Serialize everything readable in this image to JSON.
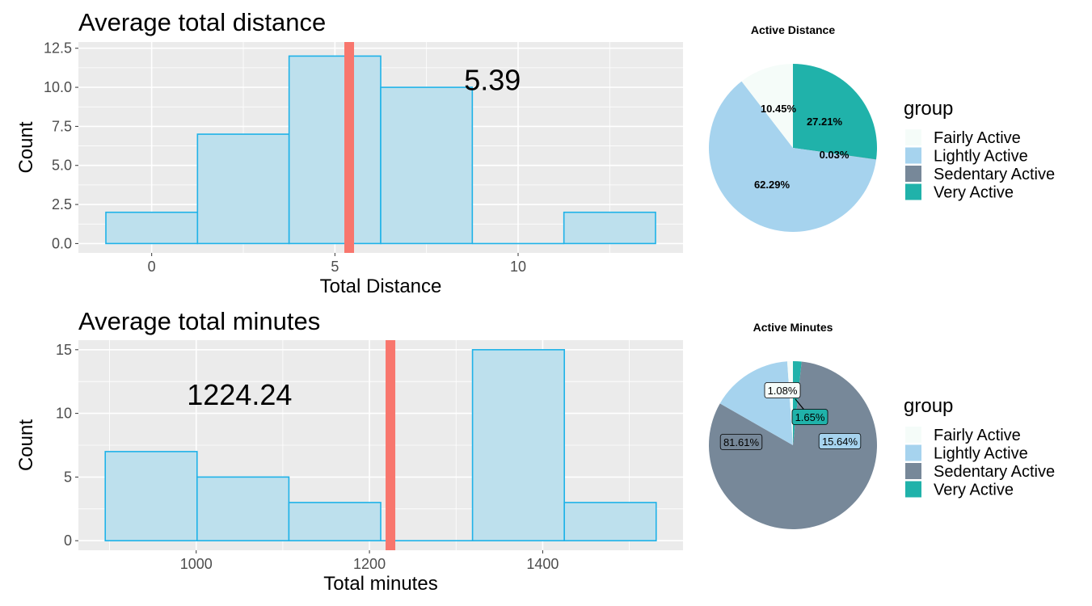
{
  "chart_data": [
    {
      "type": "bar",
      "title": "Average total distance",
      "xlabel": "Total Distance",
      "ylabel": "Count",
      "bins": [
        {
          "x0": -1.25,
          "x1": 1.25,
          "count": 2
        },
        {
          "x0": 1.25,
          "x1": 3.75,
          "count": 7
        },
        {
          "x0": 3.75,
          "x1": 6.25,
          "count": 12
        },
        {
          "x0": 6.25,
          "x1": 8.75,
          "count": 10
        },
        {
          "x0": 8.75,
          "x1": 11.25,
          "count": 0
        },
        {
          "x0": 11.25,
          "x1": 13.75,
          "count": 2
        }
      ],
      "mean_line": 5.39,
      "annotation": "5.39",
      "annotation_pos": {
        "x": 9.3,
        "y": 10.5
      },
      "xlim": [
        -2.0,
        14.5
      ],
      "ylim": [
        -0.6,
        12.9
      ],
      "x_ticks": [
        0,
        5,
        10
      ],
      "x_tick_labels": [
        "0",
        "5",
        "10"
      ],
      "y_ticks": [
        0,
        2.5,
        5,
        7.5,
        10,
        12.5
      ],
      "y_tick_labels": [
        "0.0",
        "2.5",
        "5.0",
        "7.5",
        "10.0",
        "12.5"
      ],
      "grid": true
    },
    {
      "type": "bar",
      "title": "Average total minutes",
      "xlabel": "Total minutes",
      "ylabel": "Count",
      "bins": [
        {
          "x0": 895,
          "x1": 1001,
          "count": 7
        },
        {
          "x0": 1001,
          "x1": 1107,
          "count": 5
        },
        {
          "x0": 1107,
          "x1": 1213,
          "count": 3
        },
        {
          "x0": 1213,
          "x1": 1319,
          "count": 0
        },
        {
          "x0": 1319,
          "x1": 1425,
          "count": 15
        },
        {
          "x0": 1425,
          "x1": 1531,
          "count": 3
        }
      ],
      "mean_line": 1224.24,
      "annotation": "1224.24",
      "annotation_pos": {
        "x": 1050,
        "y": 11.5
      },
      "xlim": [
        864,
        1562
      ],
      "ylim": [
        -0.75,
        15.75
      ],
      "x_ticks": [
        1000,
        1200,
        1400
      ],
      "x_tick_labels": [
        "1000",
        "1200",
        "1400"
      ],
      "y_ticks": [
        0,
        5,
        10,
        15
      ],
      "y_tick_labels": [
        "0",
        "5",
        "10",
        "15"
      ],
      "grid": true
    },
    {
      "type": "pie",
      "title": "Active Distance",
      "slices": [
        {
          "name": "Very Active",
          "value": 27.21,
          "label": "27.21%"
        },
        {
          "name": "Sedentary Active",
          "value": 0.03,
          "label": "0.03%"
        },
        {
          "name": "Lightly Active",
          "value": 62.29,
          "label": "62.29%"
        },
        {
          "name": "Fairly Active",
          "value": 10.45,
          "label": "10.45%"
        }
      ],
      "legend_title": "group",
      "legend": [
        "Fairly Active",
        "Lightly Active",
        "Sedentary Active",
        "Very Active"
      ]
    },
    {
      "type": "pie",
      "title": "Active Minutes",
      "slices": [
        {
          "name": "Very Active",
          "value": 1.65,
          "label": "1.65%"
        },
        {
          "name": "Sedentary Active",
          "value": 81.61,
          "label": "81.61%"
        },
        {
          "name": "Lightly Active",
          "value": 15.64,
          "label": "15.64%"
        },
        {
          "name": "Fairly Active",
          "value": 1.08,
          "label": "1.08%"
        }
      ],
      "legend_title": "group",
      "legend": [
        "Fairly Active",
        "Lightly Active",
        "Sedentary Active",
        "Very Active"
      ]
    }
  ],
  "colors": {
    "panel_bg": "#ebebeb",
    "grid": "#ffffff",
    "bar_fill": "#bde0ed",
    "bar_stroke": "#1fb2e8",
    "mean_line": "#f8766d",
    "Fairly Active": "#f5fcf9",
    "Lightly Active": "#a6d3ee",
    "Sedentary Active": "#778899",
    "Very Active": "#20b2aa"
  }
}
